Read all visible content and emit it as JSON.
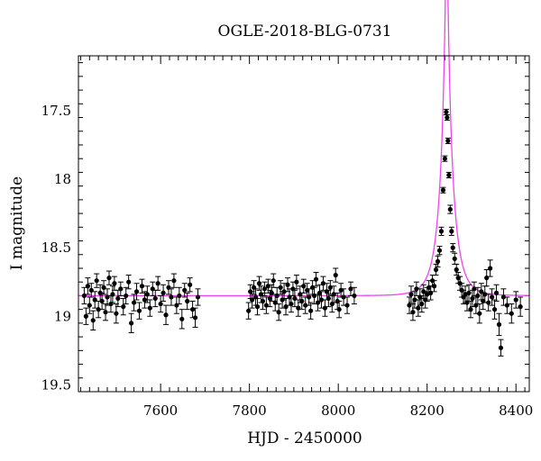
{
  "chart_data": {
    "type": "scatter",
    "title": "OGLE-2018-BLG-0731",
    "xlabel": "HJD - 2450000",
    "ylabel": "I magnitude",
    "xlim": [
      7415,
      8430
    ],
    "ylim": [
      19.55,
      17.1
    ],
    "y_inverted": true,
    "x_ticks": [
      7600,
      7800,
      8000,
      8200,
      8400
    ],
    "y_ticks": [
      17.5,
      18,
      18.5,
      19,
      19.5
    ],
    "x_tick_labels": [
      "7600",
      "7800",
      "8000",
      "8200",
      "8400"
    ],
    "y_tick_labels": [
      "17.5",
      "18",
      "18.5",
      "19",
      "19.5"
    ],
    "grid": false,
    "baseline_magnitude": 18.85,
    "colors": {
      "data": "#000000",
      "model": "#ee44ee"
    },
    "series": [
      {
        "kind": "points",
        "points": [
          [
            7428,
            18.85,
            0.06
          ],
          [
            7432,
            19.0,
            0.06
          ],
          [
            7436,
            18.78,
            0.06
          ],
          [
            7440,
            18.92,
            0.06
          ],
          [
            7444,
            18.81,
            0.05
          ],
          [
            7448,
            19.03,
            0.07
          ],
          [
            7452,
            18.88,
            0.06
          ],
          [
            7456,
            18.74,
            0.05
          ],
          [
            7460,
            18.95,
            0.06
          ],
          [
            7464,
            18.83,
            0.06
          ],
          [
            7468,
            18.89,
            0.06
          ],
          [
            7472,
            18.79,
            0.05
          ],
          [
            7476,
            18.97,
            0.06
          ],
          [
            7480,
            18.86,
            0.06
          ],
          [
            7484,
            18.72,
            0.05
          ],
          [
            7488,
            18.91,
            0.06
          ],
          [
            7492,
            18.84,
            0.06
          ],
          [
            7496,
            18.76,
            0.05
          ],
          [
            7500,
            18.98,
            0.07
          ],
          [
            7504,
            18.87,
            0.06
          ],
          [
            7510,
            18.8,
            0.05
          ],
          [
            7516,
            18.93,
            0.06
          ],
          [
            7522,
            18.85,
            0.06
          ],
          [
            7528,
            18.75,
            0.05
          ],
          [
            7534,
            19.05,
            0.07
          ],
          [
            7540,
            18.9,
            0.06
          ],
          [
            7546,
            18.82,
            0.06
          ],
          [
            7552,
            18.96,
            0.06
          ],
          [
            7558,
            18.78,
            0.05
          ],
          [
            7564,
            18.88,
            0.06
          ],
          [
            7570,
            18.84,
            0.06
          ],
          [
            7576,
            18.94,
            0.06
          ],
          [
            7582,
            18.8,
            0.05
          ],
          [
            7588,
            18.87,
            0.06
          ],
          [
            7594,
            18.76,
            0.05
          ],
          [
            7600,
            18.91,
            0.06
          ],
          [
            7606,
            18.83,
            0.06
          ],
          [
            7612,
            18.99,
            0.07
          ],
          [
            7618,
            18.79,
            0.05
          ],
          [
            7624,
            18.86,
            0.06
          ],
          [
            7630,
            18.74,
            0.05
          ],
          [
            7636,
            18.92,
            0.06
          ],
          [
            7642,
            18.85,
            0.06
          ],
          [
            7648,
            19.02,
            0.07
          ],
          [
            7654,
            18.81,
            0.05
          ],
          [
            7660,
            18.89,
            0.06
          ],
          [
            7666,
            18.77,
            0.05
          ],
          [
            7672,
            18.95,
            0.06
          ],
          [
            7678,
            19.01,
            0.07
          ],
          [
            7684,
            18.86,
            0.06
          ],
          [
            7798,
            18.96,
            0.06
          ],
          [
            7802,
            18.82,
            0.05
          ],
          [
            7806,
            18.88,
            0.06
          ],
          [
            7810,
            18.79,
            0.05
          ],
          [
            7814,
            18.86,
            0.06
          ],
          [
            7818,
            18.93,
            0.06
          ],
          [
            7822,
            18.76,
            0.05
          ],
          [
            7826,
            18.84,
            0.06
          ],
          [
            7830,
            18.89,
            0.06
          ],
          [
            7834,
            18.8,
            0.05
          ],
          [
            7838,
            18.92,
            0.06
          ],
          [
            7842,
            18.78,
            0.05
          ],
          [
            7846,
            18.87,
            0.06
          ],
          [
            7850,
            18.83,
            0.06
          ],
          [
            7854,
            18.74,
            0.05
          ],
          [
            7858,
            18.9,
            0.06
          ],
          [
            7862,
            18.85,
            0.06
          ],
          [
            7866,
            18.97,
            0.06
          ],
          [
            7870,
            18.79,
            0.05
          ],
          [
            7874,
            18.88,
            0.06
          ],
          [
            7878,
            18.82,
            0.06
          ],
          [
            7882,
            18.93,
            0.06
          ],
          [
            7886,
            18.77,
            0.05
          ],
          [
            7890,
            18.86,
            0.06
          ],
          [
            7894,
            18.91,
            0.06
          ],
          [
            7898,
            18.8,
            0.05
          ],
          [
            7902,
            18.87,
            0.06
          ],
          [
            7906,
            18.75,
            0.05
          ],
          [
            7910,
            18.94,
            0.06
          ],
          [
            7914,
            18.84,
            0.06
          ],
          [
            7918,
            18.89,
            0.06
          ],
          [
            7922,
            18.78,
            0.05
          ],
          [
            7926,
            18.92,
            0.06
          ],
          [
            7930,
            18.81,
            0.05
          ],
          [
            7934,
            18.86,
            0.06
          ],
          [
            7938,
            18.96,
            0.06
          ],
          [
            7942,
            18.79,
            0.05
          ],
          [
            7946,
            18.85,
            0.06
          ],
          [
            7950,
            18.73,
            0.05
          ],
          [
            7954,
            18.9,
            0.06
          ],
          [
            7958,
            18.83,
            0.06
          ],
          [
            7962,
            18.88,
            0.06
          ],
          [
            7966,
            18.76,
            0.05
          ],
          [
            7970,
            18.94,
            0.06
          ],
          [
            7974,
            18.82,
            0.06
          ],
          [
            7978,
            18.87,
            0.06
          ],
          [
            7982,
            18.79,
            0.05
          ],
          [
            7986,
            18.91,
            0.06
          ],
          [
            7990,
            18.84,
            0.06
          ],
          [
            7994,
            18.7,
            0.05
          ],
          [
            7998,
            18.89,
            0.06
          ],
          [
            8002,
            18.95,
            0.06
          ],
          [
            8006,
            18.81,
            0.05
          ],
          [
            8012,
            18.86,
            0.06
          ],
          [
            8020,
            18.92,
            0.06
          ],
          [
            8028,
            18.8,
            0.05
          ],
          [
            8036,
            18.85,
            0.06
          ],
          [
            8160,
            18.92,
            0.06
          ],
          [
            8164,
            18.84,
            0.06
          ],
          [
            8168,
            18.97,
            0.06
          ],
          [
            8172,
            18.88,
            0.06
          ],
          [
            8176,
            18.8,
            0.05
          ],
          [
            8180,
            18.94,
            0.06
          ],
          [
            8184,
            18.86,
            0.06
          ],
          [
            8188,
            18.91,
            0.06
          ],
          [
            8192,
            18.82,
            0.05
          ],
          [
            8196,
            18.88,
            0.06
          ],
          [
            8200,
            18.84,
            0.05
          ],
          [
            8204,
            18.79,
            0.05
          ],
          [
            8208,
            18.83,
            0.05
          ],
          [
            8212,
            18.74,
            0.04
          ],
          [
            8216,
            18.78,
            0.04
          ],
          [
            8220,
            18.66,
            0.04
          ],
          [
            8224,
            18.6,
            0.04
          ],
          [
            8228,
            18.52,
            0.03
          ],
          [
            8232,
            18.38,
            0.03
          ],
          [
            8236,
            18.08,
            0.02
          ],
          [
            8240,
            17.85,
            0.02
          ],
          [
            8243,
            17.51,
            0.02
          ],
          [
            8245,
            17.55,
            0.02
          ],
          [
            8247,
            17.72,
            0.02
          ],
          [
            8249,
            17.97,
            0.02
          ],
          [
            8252,
            18.22,
            0.03
          ],
          [
            8255,
            18.38,
            0.03
          ],
          [
            8258,
            18.5,
            0.03
          ],
          [
            8262,
            18.58,
            0.04
          ],
          [
            8266,
            18.66,
            0.04
          ],
          [
            8270,
            18.72,
            0.04
          ],
          [
            8274,
            18.76,
            0.05
          ],
          [
            8278,
            18.81,
            0.05
          ],
          [
            8282,
            18.86,
            0.05
          ],
          [
            8286,
            18.84,
            0.06
          ],
          [
            8290,
            18.9,
            0.06
          ],
          [
            8294,
            18.83,
            0.06
          ],
          [
            8298,
            18.95,
            0.06
          ],
          [
            8302,
            18.87,
            0.06
          ],
          [
            8306,
            18.8,
            0.05
          ],
          [
            8310,
            18.92,
            0.06
          ],
          [
            8314,
            18.85,
            0.06
          ],
          [
            8318,
            18.98,
            0.07
          ],
          [
            8322,
            18.82,
            0.06
          ],
          [
            8326,
            18.89,
            0.06
          ],
          [
            8330,
            18.84,
            0.06
          ],
          [
            8334,
            18.72,
            0.06
          ],
          [
            8338,
            18.9,
            0.06
          ],
          [
            8342,
            18.65,
            0.06
          ],
          [
            8346,
            18.86,
            0.06
          ],
          [
            8352,
            18.95,
            0.07
          ],
          [
            8356,
            18.83,
            0.06
          ],
          [
            8362,
            19.06,
            0.08
          ],
          [
            8366,
            19.23,
            0.06
          ],
          [
            8372,
            18.86,
            0.06
          ],
          [
            8380,
            18.92,
            0.06
          ],
          [
            8390,
            18.98,
            0.07
          ],
          [
            8400,
            18.88,
            0.06
          ],
          [
            8410,
            18.93,
            0.07
          ]
        ]
      },
      {
        "kind": "model",
        "t0": 8244,
        "u0": 0.095,
        "tE": 30,
        "baseline": 18.85
      }
    ]
  }
}
